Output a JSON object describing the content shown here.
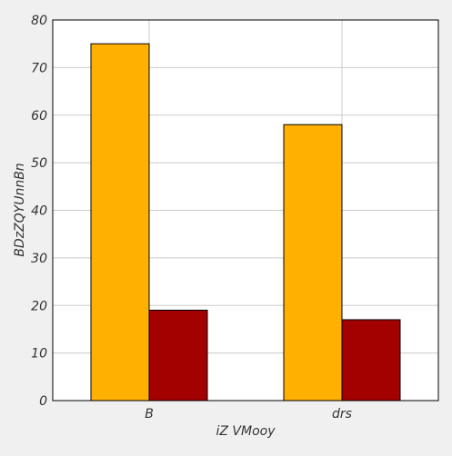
{
  "chart_data": {
    "type": "bar",
    "title": "",
    "xlabel": "iZ   VMooy",
    "ylabel": "BDzZQYUnnBn",
    "categories": [
      "B",
      "drs"
    ],
    "series": [
      {
        "values": [
          75,
          58
        ]
      },
      {
        "values": [
          19,
          17
        ]
      }
    ],
    "ylim": [
      0,
      80
    ],
    "yticks": [
      0,
      10,
      20,
      30,
      40,
      50,
      60,
      70,
      80
    ],
    "grid": true,
    "legend": "none"
  },
  "colors": {
    "background": "#f0f0f0",
    "plot_background": "#ffffff",
    "grid": "#cbcbcb",
    "series": [
      "#ffb000",
      "#a30000"
    ]
  }
}
